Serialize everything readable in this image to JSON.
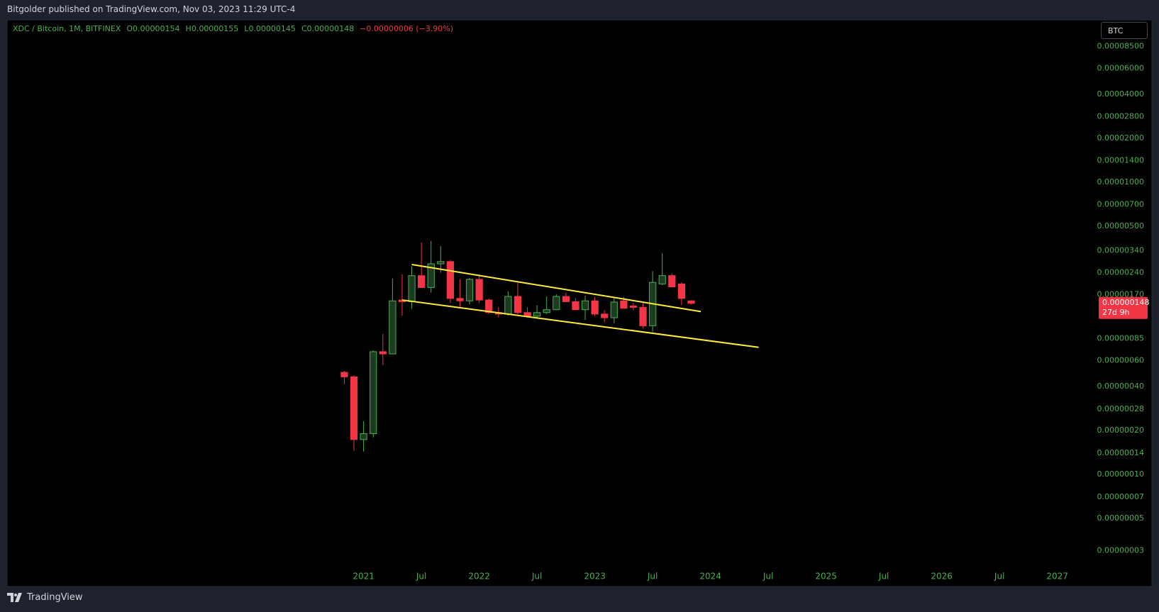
{
  "header": {
    "publisher": "Bitgolder published on TradingView.com, Nov 03, 2023 11:29 UTC-4"
  },
  "footer": {
    "brand": "TradingView"
  },
  "chart_data": {
    "type": "candlestick",
    "symbol": "XDC / Bitcoin, 1M, BITFINEX",
    "ohlc_legend": [
      "O0.00000154",
      "H0.00000155",
      "L0.00000145",
      "C0.00000148"
    ],
    "change": "−0.00000006 (−3.90%)",
    "currency": "BTC",
    "price_label": "0.00000148",
    "countdown": "27d 9h",
    "log_scale": true,
    "grid": false,
    "up_color": "#4caf50",
    "up_fill": "#1d3b20",
    "down_color": "#f23645",
    "x": [
      "2020-11",
      "2020-12",
      "2021-01",
      "2021-02",
      "2021-03",
      "2021-04",
      "2021-05",
      "2021-06",
      "2021-07",
      "2021-08",
      "2021-09",
      "2021-10",
      "2021-11",
      "2021-12",
      "2022-01",
      "2022-02",
      "2022-03",
      "2022-04",
      "2022-05",
      "2022-06",
      "2022-07",
      "2022-08",
      "2022-09",
      "2022-10",
      "2022-11",
      "2022-12",
      "2023-01",
      "2023-02",
      "2023-03",
      "2023-04",
      "2023-05",
      "2023-06",
      "2023-07",
      "2023-08",
      "2023-09",
      "2023-10",
      "2023-11"
    ],
    "open": [
      4.99e-07,
      4.65e-07,
      1.73e-07,
      1.9e-07,
      6.91e-07,
      6.67e-07,
      1.56e-06,
      1.52e-06,
      2.29e-06,
      1.9e-06,
      2.76e-06,
      2.86e-06,
      1.6e-06,
      1.54e-06,
      2.16e-06,
      1.56e-06,
      1.28e-06,
      1.25e-06,
      1.65e-06,
      1.28e-06,
      1.21e-06,
      1.28e-06,
      1.34e-06,
      1.65e-06,
      1.52e-06,
      1.34e-06,
      1.54e-06,
      1.25e-06,
      1.18e-06,
      1.54e-06,
      1.42e-06,
      1.39e-06,
      1.04e-06,
      2.01e-06,
      2.29e-06,
      2.01e-06,
      1.54e-06
    ],
    "high": [
      5.1e-07,
      4.76e-07,
      2.31e-07,
      7.07e-07,
      9.13e-07,
      2.19e-06,
      2.34e-06,
      2.66e-06,
      3.87e-06,
      3.96e-06,
      3.65e-06,
      2.93e-06,
      2.16e-06,
      2.21e-06,
      2.34e-06,
      1.6e-06,
      1.39e-06,
      1.79e-06,
      2.11e-06,
      1.39e-06,
      1.44e-06,
      1.65e-06,
      1.71e-06,
      1.75e-06,
      1.6e-06,
      1.67e-06,
      1.64e-06,
      1.33e-06,
      1.64e-06,
      1.64e-06,
      1.49e-06,
      1.51e-06,
      2.46e-06,
      3.25e-06,
      2.37e-06,
      2.06e-06,
      1.55e-06
    ],
    "low": [
      4.14e-07,
      1.45e-07,
      1.43e-07,
      1.79e-07,
      5.6e-07,
      6.67e-07,
      1.22e-06,
      1.36e-06,
      1.88e-06,
      1.75e-06,
      2.4e-06,
      1.49e-06,
      1.39e-06,
      1.46e-06,
      1.49e-06,
      1.25e-06,
      1.19e-06,
      1.22e-06,
      1.25e-06,
      1.18e-06,
      1.18e-06,
      1.25e-06,
      1.33e-06,
      1.51e-06,
      1.33e-06,
      1.14e-06,
      1.21e-06,
      1.1e-06,
      1.08e-06,
      1.37e-06,
      1.33e-06,
      1e-06,
      9.46e-07,
      1.97e-06,
      1.92e-06,
      1.44e-06,
      1.45e-06
    ],
    "close": [
      4.65e-07,
      1.73e-07,
      1.9e-07,
      6.91e-07,
      6.67e-07,
      1.54e-06,
      1.52e-06,
      2.29e-06,
      1.9e-06,
      2.76e-06,
      2.86e-06,
      1.6e-06,
      1.54e-06,
      2.16e-06,
      1.56e-06,
      1.28e-06,
      1.25e-06,
      1.65e-06,
      1.28e-06,
      1.21e-06,
      1.28e-06,
      1.34e-06,
      1.65e-06,
      1.52e-06,
      1.34e-06,
      1.54e-06,
      1.25e-06,
      1.18e-06,
      1.51e-06,
      1.37e-06,
      1.39e-06,
      1.04e-06,
      2.06e-06,
      2.29e-06,
      1.92e-06,
      1.6e-06,
      1.48e-06
    ],
    "trendlines": [
      {
        "color": "#ffeb3b",
        "points": [
          {
            "x": "2021-06",
            "y": 2.73e-06
          },
          {
            "x": "2023-12",
            "y": 1.3e-06
          }
        ]
      },
      {
        "color": "#ffeb3b",
        "points": [
          {
            "x": "2021-05",
            "y": 1.56e-06
          },
          {
            "x": "2024-06",
            "y": 7.4e-07
          }
        ]
      }
    ],
    "xlim": [
      "2017-12",
      "2027-05"
    ],
    "xticks": [
      {
        "value": "2021-01",
        "label": "2021"
      },
      {
        "value": "2021-07",
        "label": "Jul"
      },
      {
        "value": "2022-01",
        "label": "2022"
      },
      {
        "value": "2022-07",
        "label": "Jul"
      },
      {
        "value": "2023-01",
        "label": "2023"
      },
      {
        "value": "2023-07",
        "label": "Jul"
      },
      {
        "value": "2024-01",
        "label": "2024"
      },
      {
        "value": "2024-07",
        "label": "Jul"
      },
      {
        "value": "2025-01",
        "label": "2025"
      },
      {
        "value": "2025-07",
        "label": "Jul"
      },
      {
        "value": "2026-01",
        "label": "2026"
      },
      {
        "value": "2026-07",
        "label": "Jul"
      },
      {
        "value": "2027-01",
        "label": "2027"
      }
    ],
    "ylim": [
      2.31e-08,
      0.000129
    ],
    "yticks": [
      {
        "value": 8.5e-05,
        "label": "0.00008500"
      },
      {
        "value": 6e-05,
        "label": "0.00006000"
      },
      {
        "value": 4e-05,
        "label": "0.00004000"
      },
      {
        "value": 2.8e-05,
        "label": "0.00002800"
      },
      {
        "value": 2e-05,
        "label": "0.00002000"
      },
      {
        "value": 1.4e-05,
        "label": "0.00001400"
      },
      {
        "value": 1e-05,
        "label": "0.00001000"
      },
      {
        "value": 7e-06,
        "label": "0.00000700"
      },
      {
        "value": 5e-06,
        "label": "0.00000500"
      },
      {
        "value": 3.4e-06,
        "label": "0.00000340"
      },
      {
        "value": 2.4e-06,
        "label": "0.00000240"
      },
      {
        "value": 1.7e-06,
        "label": "0.00000170"
      },
      {
        "value": 8.5e-07,
        "label": "0.00000085"
      },
      {
        "value": 6e-07,
        "label": "0.00000060"
      },
      {
        "value": 4e-07,
        "label": "0.00000040"
      },
      {
        "value": 2.8e-07,
        "label": "0.00000028"
      },
      {
        "value": 2e-07,
        "label": "0.00000020"
      },
      {
        "value": 1.4e-07,
        "label": "0.00000014"
      },
      {
        "value": 1e-07,
        "label": "0.00000010"
      },
      {
        "value": 7e-08,
        "label": "0.00000007"
      },
      {
        "value": 5e-08,
        "label": "0.00000005"
      },
      {
        "value": 3e-08,
        "label": "0.00000003"
      }
    ]
  }
}
